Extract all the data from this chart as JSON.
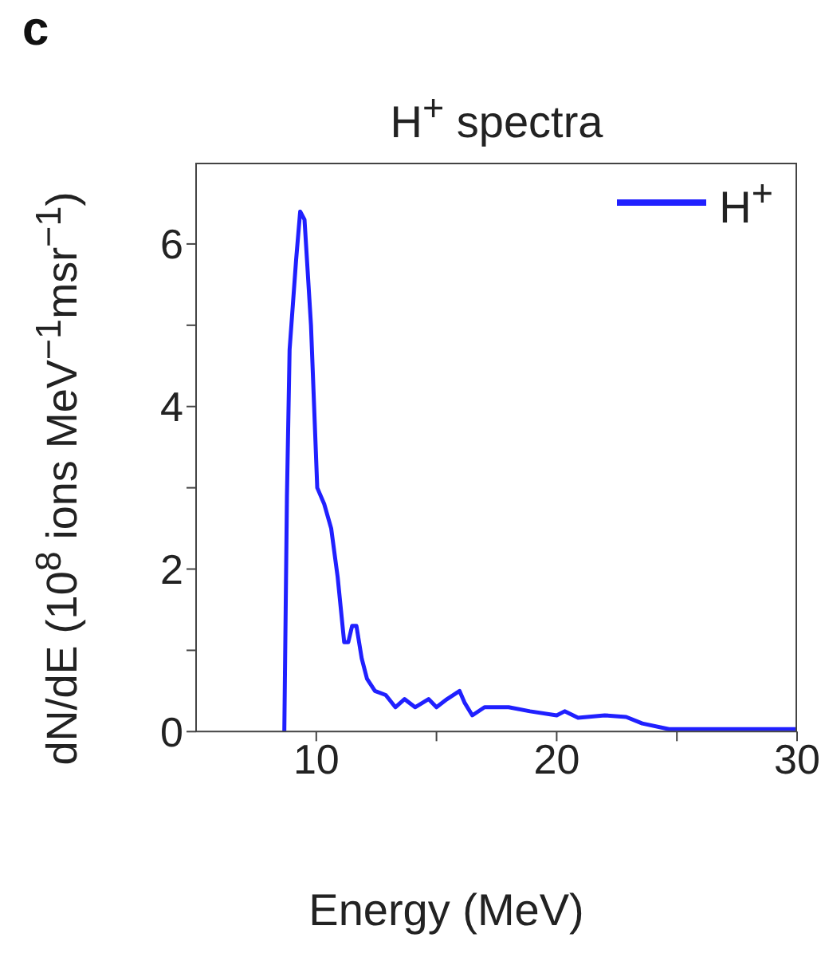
{
  "chart_data": {
    "type": "line",
    "title": "H$^{+}$ spectra",
    "xlabel": "Energy (MeV)",
    "ylabel": "dN/dE (10$^{8}$ ions MeV$^{−1}$msr$^{−1}$)",
    "annotations": [
      "c"
    ],
    "xlim": [
      5,
      30
    ],
    "xticks": [
      10,
      {
        "value": 15,
        "label": null
      },
      20,
      {
        "value": 25,
        "label": null
      },
      30
    ],
    "ylim": [
      0,
      7
    ],
    "yticks": [
      0,
      {
        "value": 1,
        "label": null
      },
      2,
      {
        "value": 3,
        "label": null
      },
      4,
      {
        "value": 5,
        "label": null
      },
      6
    ],
    "legend": "top right",
    "grid": false,
    "series": [
      {
        "name": "H$^{+}$",
        "color": "#2020ff",
        "x": [
          8.67,
          8.78,
          8.89,
          9.16,
          9.33,
          9.51,
          9.78,
          10.04,
          10.33,
          10.62,
          10.89,
          11.16,
          11.33,
          11.49,
          11.67,
          11.89,
          12.11,
          12.44,
          12.89,
          13.29,
          13.67,
          14.11,
          14.67,
          15.0,
          15.44,
          15.96,
          16.18,
          16.49,
          17.0,
          18.0,
          18.89,
          20.0,
          20.33,
          20.89,
          22.0,
          22.89,
          23.56,
          24.67,
          30
        ],
        "values": [
          0,
          2.9,
          4.7,
          5.8,
          6.4,
          6.3,
          5.0,
          3.0,
          2.8,
          2.5,
          1.9,
          1.1,
          1.1,
          1.3,
          1.3,
          0.9,
          0.65,
          0.5,
          0.45,
          0.3,
          0.4,
          0.3,
          0.4,
          0.3,
          0.4,
          0.5,
          0.35,
          0.2,
          0.3,
          0.3,
          0.25,
          0.2,
          0.25,
          0.17,
          0.2,
          0.18,
          0.1,
          0.03,
          0.03
        ]
      }
    ]
  }
}
